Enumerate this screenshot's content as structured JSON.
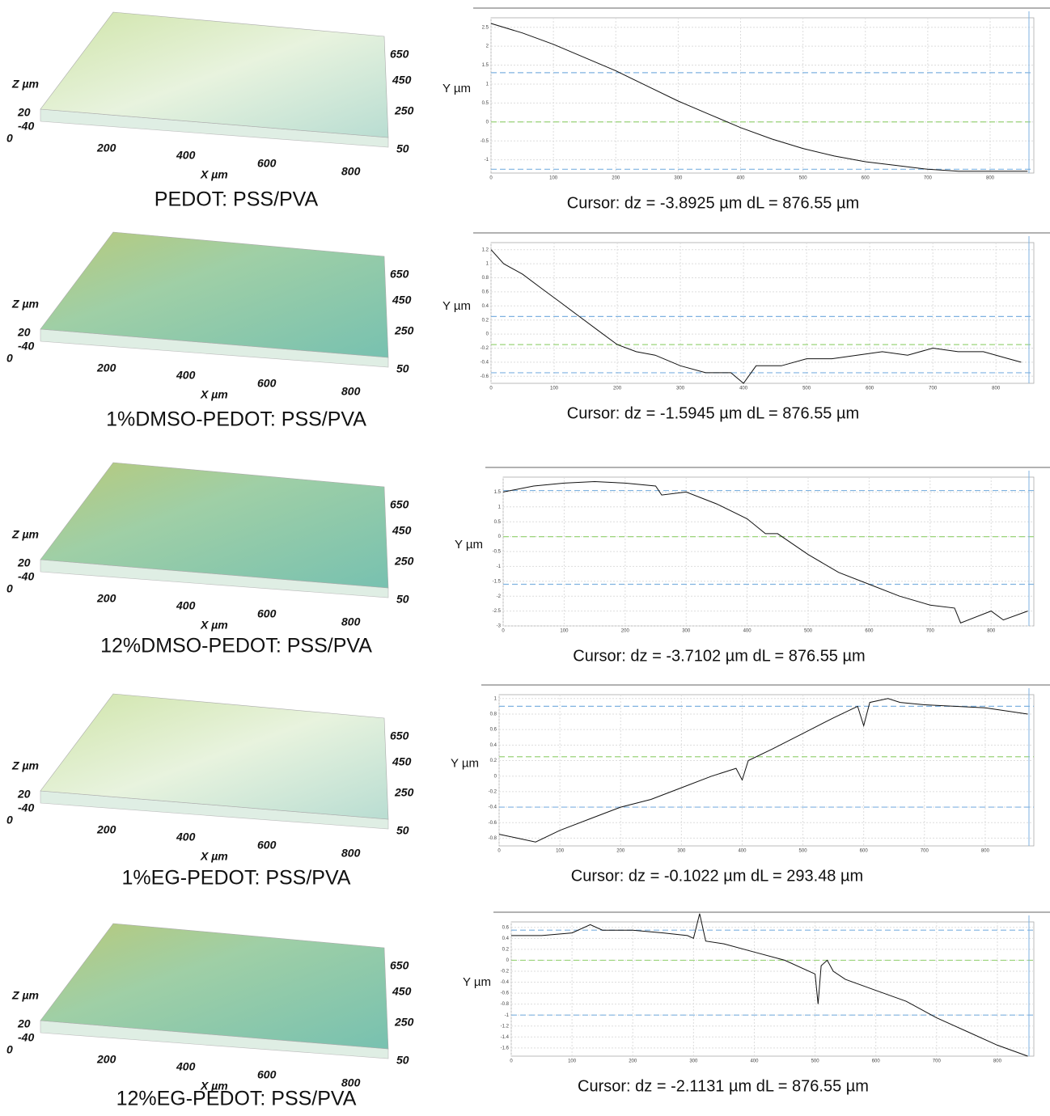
{
  "surfaces": [
    {
      "caption": "PEDOT: PSS/PVA",
      "z_label": "Z µm",
      "z_ticks": [
        "20",
        "-40",
        "0"
      ],
      "x_ticks": [
        "200",
        "400",
        "600",
        "800"
      ],
      "x_label": "X µm",
      "y_ticks": [
        "650",
        "450",
        "250",
        "50"
      ]
    },
    {
      "caption": "1%DMSO-PEDOT: PSS/PVA",
      "z_label": "Z µm",
      "z_ticks": [
        "20",
        "-40",
        "0"
      ],
      "x_ticks": [
        "200",
        "400",
        "600",
        "800"
      ],
      "x_label": "X µm",
      "y_ticks": [
        "650",
        "450",
        "250",
        "50"
      ]
    },
    {
      "caption": "12%DMSO-PEDOT: PSS/PVA",
      "z_label": "Z µm",
      "z_ticks": [
        "20",
        "-40",
        "0"
      ],
      "x_ticks": [
        "200",
        "400",
        "600",
        "800"
      ],
      "x_label": "X µm",
      "y_ticks": [
        "650",
        "450",
        "250",
        "50"
      ]
    },
    {
      "caption": "1%EG-PEDOT: PSS/PVA",
      "z_label": "Z µm",
      "z_ticks": [
        "20",
        "-40",
        "0"
      ],
      "x_ticks": [
        "200",
        "400",
        "600",
        "800"
      ],
      "x_label": "X µm",
      "y_ticks": [
        "650",
        "450",
        "250",
        "50"
      ]
    },
    {
      "caption": "12%EG-PEDOT: PSS/PVA",
      "z_label": "Z µm",
      "z_ticks": [
        "20",
        "-40",
        "0"
      ],
      "x_ticks": [
        "200",
        "400",
        "600",
        "800"
      ],
      "x_label": "X µm",
      "y_ticks": [
        "650",
        "450",
        "250",
        "50"
      ]
    }
  ],
  "chart_data": [
    {
      "type": "line",
      "caption": "Cursor: dz = -3.8925 µm  dL = 876.55 µm",
      "y_label": "Y µm",
      "color": "#111111",
      "x": [
        0,
        50,
        100,
        150,
        200,
        250,
        300,
        350,
        400,
        450,
        500,
        550,
        600,
        650,
        700,
        750,
        800,
        860
      ],
      "values": [
        2.6,
        2.35,
        2.05,
        1.7,
        1.35,
        0.95,
        0.55,
        0.2,
        -0.15,
        -0.45,
        -0.7,
        -0.9,
        -1.05,
        -1.15,
        -1.25,
        -1.3,
        -1.3,
        -1.3
      ],
      "xlim": [
        0,
        870
      ],
      "ylim": [
        -1.35,
        2.75
      ],
      "xticks": [
        0,
        100,
        200,
        300,
        400,
        500,
        600,
        700,
        800
      ],
      "yticks": [
        -1.0,
        -0.5,
        0.0,
        0.5,
        1.0,
        1.5,
        2.0,
        2.5
      ],
      "hlines": [
        {
          "value": 1.3,
          "color": "#7fb2e0"
        },
        {
          "value": 0.0,
          "color": "#9bd37a"
        },
        {
          "value": -1.25,
          "color": "#7fb2e0"
        }
      ]
    },
    {
      "type": "line",
      "caption": "Cursor: dz = -1.5945 µm  dL = 876.55 µm",
      "y_label": "Y µm",
      "color": "#111111",
      "x": [
        0,
        20,
        50,
        80,
        110,
        140,
        170,
        200,
        230,
        260,
        300,
        340,
        380,
        400,
        420,
        460,
        500,
        540,
        580,
        620,
        660,
        700,
        740,
        780,
        820,
        840
      ],
      "values": [
        1.2,
        1.0,
        0.85,
        0.65,
        0.45,
        0.25,
        0.05,
        -0.15,
        -0.25,
        -0.3,
        -0.45,
        -0.55,
        -0.55,
        -0.7,
        -0.45,
        -0.45,
        -0.35,
        -0.35,
        -0.3,
        -0.25,
        -0.3,
        -0.2,
        -0.25,
        -0.25,
        -0.35,
        -0.4
      ],
      "xlim": [
        0,
        860
      ],
      "ylim": [
        -0.7,
        1.3
      ],
      "xticks": [
        0,
        100,
        200,
        300,
        400,
        500,
        600,
        700,
        800
      ],
      "yticks": [
        -0.6,
        -0.4,
        -0.2,
        0.0,
        0.2,
        0.4,
        0.6,
        0.8,
        1.0,
        1.2
      ],
      "hlines": [
        {
          "value": 0.25,
          "color": "#7fb2e0"
        },
        {
          "value": -0.15,
          "color": "#9bd37a"
        },
        {
          "value": -0.55,
          "color": "#7fb2e0"
        }
      ]
    },
    {
      "type": "line",
      "caption": "Cursor: dz = -3.7102 µm  dL = 876.55 µm",
      "y_label": "Y µm",
      "color": "#111111",
      "x": [
        0,
        50,
        100,
        150,
        200,
        250,
        260,
        300,
        350,
        400,
        430,
        450,
        500,
        550,
        600,
        650,
        700,
        740,
        750,
        800,
        820,
        860
      ],
      "values": [
        1.5,
        1.7,
        1.8,
        1.85,
        1.8,
        1.7,
        1.4,
        1.5,
        1.1,
        0.6,
        0.1,
        0.1,
        -0.6,
        -1.2,
        -1.6,
        -2.0,
        -2.3,
        -2.4,
        -2.9,
        -2.5,
        -2.8,
        -2.5
      ],
      "xlim": [
        0,
        870
      ],
      "ylim": [
        -3.0,
        2.0
      ],
      "xticks": [
        0,
        100,
        200,
        300,
        400,
        500,
        600,
        700,
        800
      ],
      "yticks": [
        -3.0,
        -2.5,
        -2.0,
        -1.5,
        -1.0,
        -0.5,
        0.0,
        0.5,
        1.0,
        1.5
      ],
      "hlines": [
        {
          "value": 1.55,
          "color": "#7fb2e0"
        },
        {
          "value": 0.0,
          "color": "#9bd37a"
        },
        {
          "value": -1.6,
          "color": "#7fb2e0"
        }
      ]
    },
    {
      "type": "line",
      "caption": "Cursor: dz = -0.1022 µm  dL = 293.48 µm",
      "y_label": "Y µm",
      "color": "#111111",
      "x": [
        0,
        30,
        60,
        100,
        150,
        200,
        250,
        300,
        350,
        390,
        400,
        410,
        450,
        500,
        550,
        590,
        600,
        610,
        640,
        660,
        700,
        750,
        800,
        870
      ],
      "values": [
        -0.75,
        -0.8,
        -0.85,
        -0.7,
        -0.55,
        -0.4,
        -0.3,
        -0.15,
        0.0,
        0.1,
        -0.05,
        0.2,
        0.35,
        0.55,
        0.75,
        0.9,
        0.65,
        0.95,
        1.0,
        0.95,
        0.92,
        0.9,
        0.88,
        0.8
      ],
      "xlim": [
        0,
        880
      ],
      "ylim": [
        -0.9,
        1.05
      ],
      "xticks": [
        0,
        100,
        200,
        300,
        400,
        500,
        600,
        700,
        800
      ],
      "yticks": [
        -0.8,
        -0.6,
        -0.4,
        -0.2,
        0.0,
        0.2,
        0.4,
        0.6,
        0.8,
        1.0
      ],
      "hlines": [
        {
          "value": 0.9,
          "color": "#7fb2e0"
        },
        {
          "value": 0.25,
          "color": "#9bd37a"
        },
        {
          "value": -0.4,
          "color": "#7fb2e0"
        }
      ]
    },
    {
      "type": "line",
      "caption": "Cursor: dz = -2.1131 µm  dL = 876.55 µm",
      "y_label": "Y µm",
      "color": "#111111",
      "x": [
        0,
        50,
        100,
        130,
        150,
        200,
        250,
        290,
        300,
        310,
        320,
        350,
        400,
        450,
        500,
        505,
        510,
        520,
        530,
        550,
        600,
        650,
        700,
        750,
        800,
        850
      ],
      "values": [
        0.45,
        0.45,
        0.5,
        0.65,
        0.55,
        0.55,
        0.5,
        0.45,
        0.4,
        0.85,
        0.35,
        0.3,
        0.15,
        0.0,
        -0.25,
        -0.8,
        -0.1,
        0.0,
        -0.2,
        -0.35,
        -0.55,
        -0.75,
        -1.05,
        -1.3,
        -1.55,
        -1.75
      ],
      "xlim": [
        0,
        860
      ],
      "ylim": [
        -1.75,
        0.7
      ],
      "xticks": [
        0,
        100,
        200,
        300,
        400,
        500,
        600,
        700,
        800
      ],
      "yticks": [
        -1.6,
        -1.4,
        -1.2,
        -1.0,
        -0.8,
        -0.6,
        -0.4,
        -0.2,
        0.0,
        0.2,
        0.4,
        0.6
      ],
      "hlines": [
        {
          "value": 0.55,
          "color": "#7fb2e0"
        },
        {
          "value": 0.0,
          "color": "#9bd37a"
        },
        {
          "value": -1.0,
          "color": "#7fb2e0"
        }
      ]
    }
  ]
}
